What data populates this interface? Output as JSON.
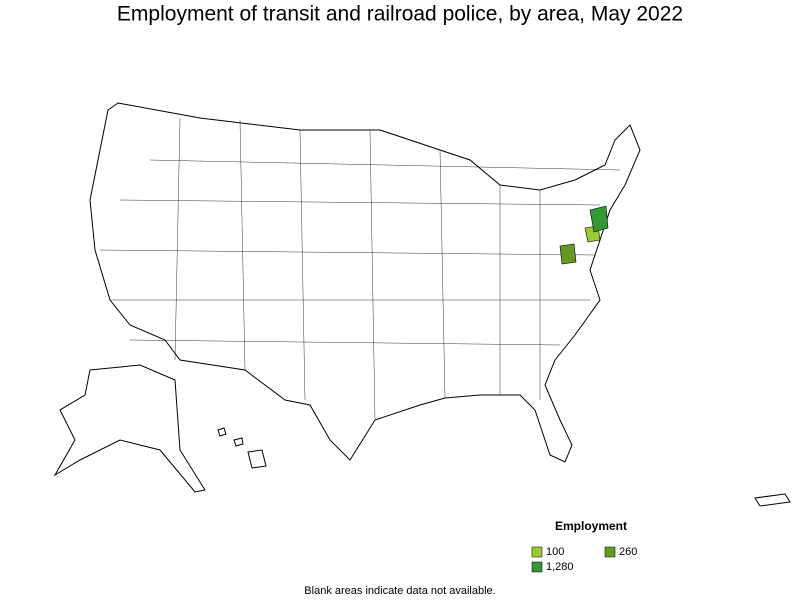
{
  "title": "Employment of transit and railroad police, by area, May 2022",
  "legend": {
    "title": "Employment",
    "items": [
      {
        "label": "100",
        "color": "#99cc33"
      },
      {
        "label": "260",
        "color": "#669922"
      },
      {
        "label": "1,280",
        "color": "#339933"
      }
    ]
  },
  "footnote": "Blank areas indicate data not available."
}
